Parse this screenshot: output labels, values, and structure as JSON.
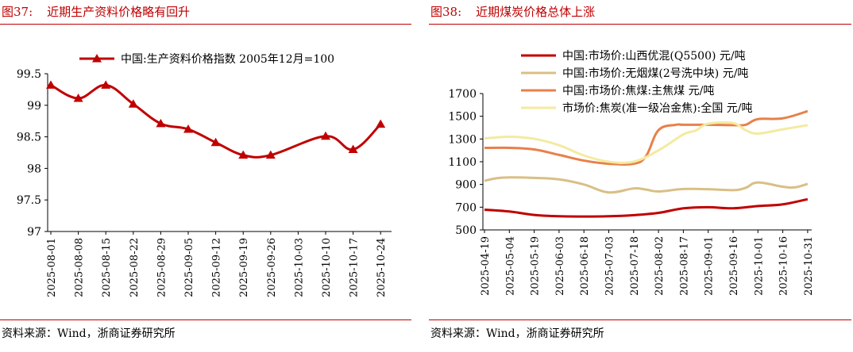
{
  "left_panel": {
    "figure_number": "图37:",
    "figure_title": "近期生产资料价格略有回升",
    "source": "资料来源：Wind，浙商证券研究所"
  },
  "right_panel": {
    "figure_number": "图38:",
    "figure_title": "近期煤炭价格总体上涨",
    "source": "资料来源：Wind，浙商证券研究所"
  },
  "chart_data": [
    {
      "type": "line",
      "title": "",
      "xlabel": "",
      "ylabel": "",
      "ylim": [
        97,
        99.5
      ],
      "yticks": [
        "99.5",
        "99",
        "98.5",
        "98",
        "97.5",
        "97"
      ],
      "legend_position": "top",
      "x": [
        "2025-08-01",
        "2025-08-08",
        "2025-08-15",
        "2025-08-22",
        "2025-08-29",
        "2025-09-05",
        "2025-09-12",
        "2025-09-19",
        "2025-09-26",
        "2025-10-03",
        "2025-10-10",
        "2025-10-17",
        "2025-10-24"
      ],
      "series": [
        {
          "name": "中国:生产资料价格指数 2005年12月=100",
          "color": "#c00000",
          "marker": "triangle",
          "values": [
            99.32,
            99.11,
            99.32,
            99.02,
            98.71,
            98.62,
            98.41,
            98.21,
            98.21,
            null,
            98.51,
            98.3,
            98.7
          ]
        }
      ]
    },
    {
      "type": "line",
      "title": "",
      "xlabel": "",
      "ylabel": "",
      "ylim": [
        500,
        1700
      ],
      "yticks": [
        "1700",
        "1500",
        "1300",
        "1100",
        "900",
        "700",
        "500"
      ],
      "legend_position": "top",
      "x": [
        "2025-04-19",
        "2025-05-04",
        "2025-05-19",
        "2025-06-03",
        "2025-06-18",
        "2025-07-03",
        "2025-07-18",
        "2025-08-02",
        "2025-08-17",
        "2025-09-01",
        "2025-09-16",
        "2025-10-01",
        "2025-10-16",
        "2025-10-31"
      ],
      "series": [
        {
          "name": "中国:市场价:山西优混(Q5500) 元/吨",
          "color": "#c00000",
          "values": [
            [
              0,
              678
            ],
            [
              1,
              662
            ],
            [
              2,
              632
            ],
            [
              3,
              620
            ],
            [
              4,
              618
            ],
            [
              5,
              620
            ],
            [
              6,
              630
            ],
            [
              7,
              650
            ],
            [
              8,
              690
            ],
            [
              9,
              700
            ],
            [
              10,
              690
            ],
            [
              11,
              710
            ],
            [
              12,
              725
            ],
            [
              13,
              770
            ]
          ]
        },
        {
          "name": "中国:市场价:无烟煤(2号洗中块) 元/吨",
          "color": "#d9bf86",
          "values": [
            [
              0,
              932
            ],
            [
              0.5,
              955
            ],
            [
              1,
              962
            ],
            [
              2,
              958
            ],
            [
              3,
              945
            ],
            [
              4,
              900
            ],
            [
              5,
              830
            ],
            [
              6,
              865
            ],
            [
              6.5,
              855
            ],
            [
              7,
              838
            ],
            [
              8,
              860
            ],
            [
              9,
              858
            ],
            [
              10,
              850
            ],
            [
              10.5,
              870
            ],
            [
              11,
              918
            ],
            [
              12,
              880
            ],
            [
              12.5,
              875
            ],
            [
              13,
              905
            ]
          ]
        },
        {
          "name": "中国:市场价:焦煤:主焦煤 元/吨",
          "color": "#e8804a",
          "values": [
            [
              0,
              1222
            ],
            [
              1,
              1222
            ],
            [
              2,
              1208
            ],
            [
              3,
              1160
            ],
            [
              4,
              1110
            ],
            [
              5,
              1082
            ],
            [
              6,
              1082
            ],
            [
              6.5,
              1150
            ],
            [
              7,
              1378
            ],
            [
              7.7,
              1425
            ],
            [
              8,
              1425
            ],
            [
              9,
              1425
            ],
            [
              10,
              1422
            ],
            [
              10.5,
              1425
            ],
            [
              11,
              1475
            ],
            [
              12,
              1482
            ],
            [
              13,
              1545
            ]
          ]
        },
        {
          "name": "市场价:焦炭(准一级冶金焦):全国 元/吨",
          "color": "#f4eaa0",
          "values": [
            [
              0,
              1305
            ],
            [
              1,
              1320
            ],
            [
              2,
              1302
            ],
            [
              3,
              1245
            ],
            [
              4,
              1155
            ],
            [
              5,
              1100
            ],
            [
              6,
              1100
            ],
            [
              7,
              1200
            ],
            [
              8,
              1340
            ],
            [
              8.5,
              1375
            ],
            [
              9,
              1435
            ],
            [
              10,
              1440
            ],
            [
              10.5,
              1378
            ],
            [
              11,
              1348
            ],
            [
              12,
              1385
            ],
            [
              13,
              1422
            ]
          ]
        }
      ]
    }
  ]
}
